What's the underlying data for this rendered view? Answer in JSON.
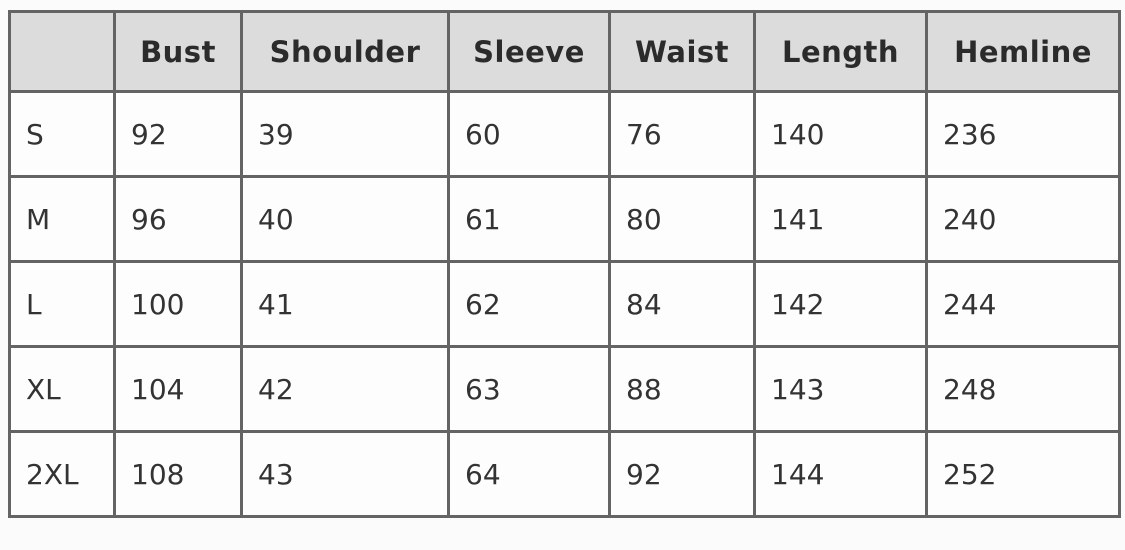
{
  "colors": {
    "page_bg": "#fbfbfb",
    "header_bg": "#dcdcdc",
    "cell_bg": "#fdfdfd",
    "border": "#646464",
    "header_text": "#2b2b2b",
    "cell_text": "#333333"
  },
  "chart_data": {
    "type": "table",
    "columns": [
      "",
      "Bust",
      "Shoulder",
      "Sleeve",
      "Waist",
      "Length",
      "Hemline"
    ],
    "rows": [
      [
        "S",
        92,
        39,
        60,
        76,
        140,
        236
      ],
      [
        "M",
        96,
        40,
        61,
        80,
        141,
        240
      ],
      [
        "L",
        100,
        41,
        62,
        84,
        142,
        244
      ],
      [
        "XL",
        104,
        42,
        63,
        88,
        143,
        248
      ],
      [
        "2XL",
        108,
        43,
        64,
        92,
        144,
        252
      ]
    ]
  }
}
